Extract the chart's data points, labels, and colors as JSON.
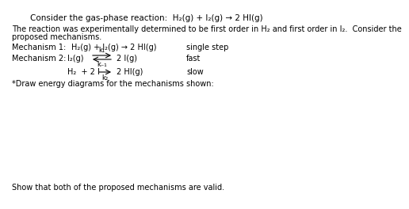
{
  "background_color": "#ffffff",
  "title_line": "Consider the gas-phase reaction:  H₂(g) + I₂(g) → 2 HI(g)",
  "body_line1": "The reaction was experimentally determined to be first order in H₂ and first order in I₂.  Consider the",
  "body_line2": "proposed mechanisms.",
  "mech1_label": "Mechanism 1:",
  "mech1_reaction": "H₂(g) + I₂(g) → 2 HI(g)",
  "mech1_note": "single step",
  "mech2_label": "Mechanism 2:",
  "mech2_step1_reactant": "I₂(g)",
  "mech2_step1_product": "2 I(g)",
  "mech2_step1_note": "fast",
  "mech2_step2_reactant": "H₂  + 2 I",
  "mech2_step2_product": "2 HI(g)",
  "mech2_step2_note": "slow",
  "mech2_k1": "k₁",
  "mech2_km1": "k₋₁",
  "mech2_k2": "k₂",
  "draw_label": "*Draw energy diagrams for the mechanisms shown:",
  "show_label": "Show that both of the proposed mechanisms are valid.",
  "font_size_title": 7.5,
  "font_size_body": 7.0,
  "font_size_mech": 7.0,
  "font_size_k": 6.0
}
